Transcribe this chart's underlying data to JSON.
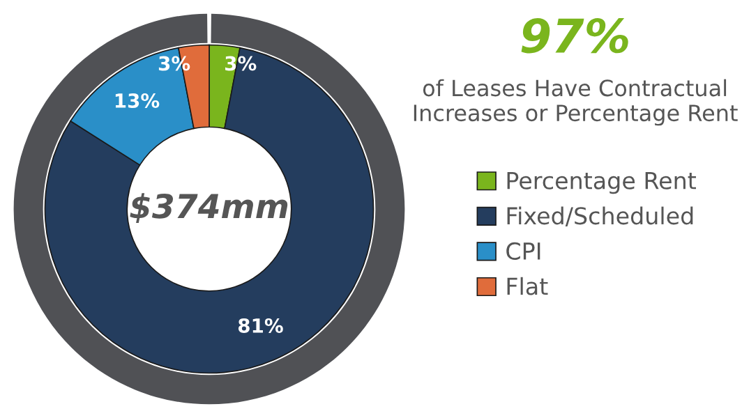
{
  "chart_data": {
    "type": "donut",
    "title": "97%",
    "subtitle": "of Leases Have Contractual\nIncreases or Percentage Rent",
    "categories": [
      "Percentage Rent",
      "Fixed/Scheduled",
      "CPI",
      "Flat"
    ],
    "values": [
      3,
      81,
      13,
      3
    ],
    "colors": [
      "#7ab51d",
      "#243d5e",
      "#2a8fc8",
      "#e06c3b"
    ],
    "value_labels": [
      "3%",
      "81%",
      "13%",
      "3%"
    ],
    "annotations": [
      "$374mm"
    ],
    "legend": "right"
  }
}
